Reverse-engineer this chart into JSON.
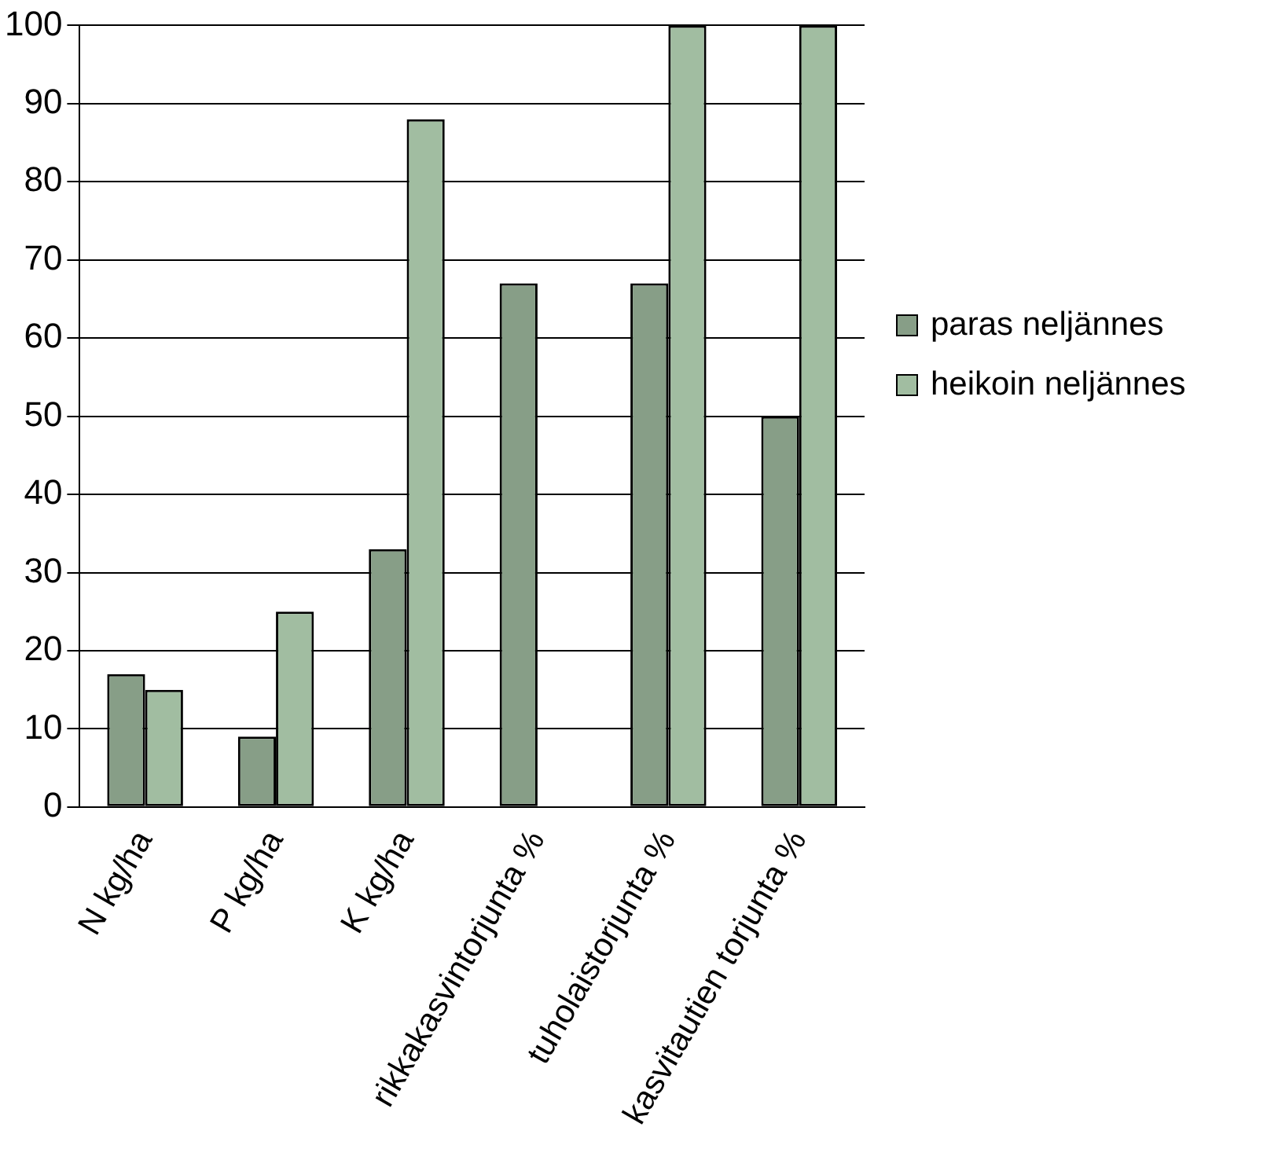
{
  "chart_data": {
    "type": "bar",
    "categories": [
      "N kg/ha",
      "P kg/ha",
      "K kg/ha",
      "rikkakasvintorjunta %",
      "tuholaistorjunta %",
      "kasvitautien torjunta %"
    ],
    "series": [
      {
        "name": "paras neljännes",
        "color": "#879e87",
        "values": [
          17,
          9,
          33,
          67,
          67,
          50
        ]
      },
      {
        "name": "heikoin neljännes",
        "color": "#a1bda1",
        "values": [
          15,
          25,
          88,
          null,
          100,
          100
        ]
      }
    ],
    "ylim": [
      0,
      100
    ],
    "yticks": [
      0,
      10,
      20,
      30,
      40,
      50,
      60,
      70,
      80,
      90,
      100
    ],
    "grid": "y",
    "legend": "right"
  }
}
